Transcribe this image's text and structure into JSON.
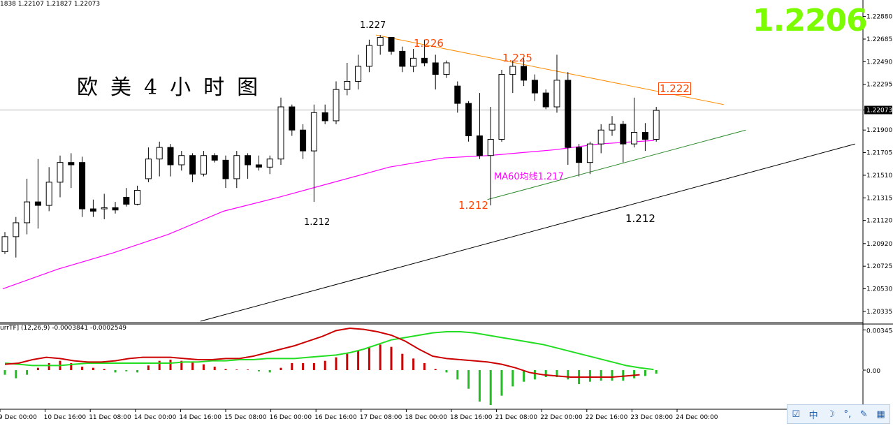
{
  "header_text": "1838 1.22107 1.21827 1.22073",
  "indicator_header": "urrTF] (12,26,9) -0.0003841 -0.0002549",
  "big_price": "1.2206",
  "title_cn": "欧美4小时图",
  "annotations": {
    "high_1227": "1.227",
    "high_1226": "1.226",
    "high_1225": "1.225",
    "level_1222": "1.222",
    "ma60_label": "MA60均线1.217",
    "low_1212_left": "1.212",
    "low_1212_mid": "1.212",
    "low_1212_right": "1.212"
  },
  "tray_icons": [
    "checkbox-icon",
    "chinese-ime-icon",
    "moon-icon",
    "punctuation-icon",
    "tools-icon",
    "grid-icon"
  ],
  "tray_labels": [
    "☑",
    "中",
    "☽",
    "°,",
    "✎",
    "▦"
  ],
  "colors": {
    "up_candle": "#ffffff",
    "down_candle": "#000000",
    "ma60": "#ff00ff",
    "resistance": "#ff8c00",
    "support": "#2e8b2e",
    "long_support": "#000000",
    "macd_main": "#cc0000",
    "macd_signal": "#22dd22",
    "hist_pos": "#cc0000",
    "hist_neg": "#22bb22",
    "big_price": "#7CFC00"
  },
  "chart_data": {
    "type": "candlestick",
    "symbol": "EURUSD H4",
    "current_price": "1.22073",
    "price_axis": {
      "ylim": [
        1.2025,
        1.2295
      ],
      "ticks": [
        "1.22880",
        "1.22685",
        "1.22490",
        "1.22295",
        "1.22073",
        "1.21900",
        "1.21705",
        "1.21510",
        "1.21315",
        "1.21120",
        "1.20920",
        "1.20725",
        "1.20530",
        "1.20335"
      ]
    },
    "time_axis": [
      "9 Dec 00:00",
      "10 Dec 16:00",
      "11 Dec 08:00",
      "14 Dec 00:00",
      "14 Dec 16:00",
      "15 Dec 08:00",
      "16 Dec 00:00",
      "16 Dec 16:00",
      "17 Dec 08:00",
      "18 Dec 00:00",
      "18 Dec 16:00",
      "21 Dec 08:00",
      "22 Dec 00:00",
      "22 Dec 16:00",
      "23 Dec 08:00",
      "24 Dec 00:00"
    ],
    "candles": [
      {
        "o": 1.2085,
        "h": 1.2102,
        "l": 1.2083,
        "c": 1.2098
      },
      {
        "o": 1.2098,
        "h": 1.2115,
        "l": 1.208,
        "c": 1.211
      },
      {
        "o": 1.211,
        "h": 1.2148,
        "l": 1.21,
        "c": 1.2128
      },
      {
        "o": 1.2128,
        "h": 1.2165,
        "l": 1.2105,
        "c": 1.2125
      },
      {
        "o": 1.2125,
        "h": 1.2158,
        "l": 1.212,
        "c": 1.2145
      },
      {
        "o": 1.2145,
        "h": 1.2168,
        "l": 1.2132,
        "c": 1.2162
      },
      {
        "o": 1.2162,
        "h": 1.217,
        "l": 1.214,
        "c": 1.216
      },
      {
        "o": 1.2162,
        "h": 1.2167,
        "l": 1.2115,
        "c": 1.2122
      },
      {
        "o": 1.2122,
        "h": 1.213,
        "l": 1.2115,
        "c": 1.212
      },
      {
        "o": 1.2122,
        "h": 1.2135,
        "l": 1.2113,
        "c": 1.2123
      },
      {
        "o": 1.2123,
        "h": 1.2128,
        "l": 1.2118,
        "c": 1.2121
      },
      {
        "o": 1.2132,
        "h": 1.214,
        "l": 1.2124,
        "c": 1.2126
      },
      {
        "o": 1.2126,
        "h": 1.2142,
        "l": 1.2125,
        "c": 1.2138
      },
      {
        "o": 1.2148,
        "h": 1.2175,
        "l": 1.2145,
        "c": 1.2165
      },
      {
        "o": 1.2165,
        "h": 1.218,
        "l": 1.215,
        "c": 1.2175
      },
      {
        "o": 1.2175,
        "h": 1.2178,
        "l": 1.215,
        "c": 1.216
      },
      {
        "o": 1.216,
        "h": 1.2172,
        "l": 1.2155,
        "c": 1.2168
      },
      {
        "o": 1.2168,
        "h": 1.217,
        "l": 1.2145,
        "c": 1.2152
      },
      {
        "o": 1.2152,
        "h": 1.2172,
        "l": 1.215,
        "c": 1.2168
      },
      {
        "o": 1.2168,
        "h": 1.217,
        "l": 1.2162,
        "c": 1.2164
      },
      {
        "o": 1.2164,
        "h": 1.2168,
        "l": 1.214,
        "c": 1.2148
      },
      {
        "o": 1.2148,
        "h": 1.2172,
        "l": 1.214,
        "c": 1.2168
      },
      {
        "o": 1.2168,
        "h": 1.217,
        "l": 1.2148,
        "c": 1.216
      },
      {
        "o": 1.216,
        "h": 1.2168,
        "l": 1.2155,
        "c": 1.2158
      },
      {
        "o": 1.2158,
        "h": 1.2168,
        "l": 1.2152,
        "c": 1.2165
      },
      {
        "o": 1.2165,
        "h": 1.2218,
        "l": 1.216,
        "c": 1.221
      },
      {
        "o": 1.221,
        "h": 1.2212,
        "l": 1.2185,
        "c": 1.219
      },
      {
        "o": 1.219,
        "h": 1.2195,
        "l": 1.2165,
        "c": 1.2172
      },
      {
        "o": 1.2172,
        "h": 1.2212,
        "l": 1.2128,
        "c": 1.2205
      },
      {
        "o": 1.2205,
        "h": 1.2212,
        "l": 1.2195,
        "c": 1.2198
      },
      {
        "o": 1.2198,
        "h": 1.2232,
        "l": 1.2195,
        "c": 1.2225
      },
      {
        "o": 1.2225,
        "h": 1.2248,
        "l": 1.222,
        "c": 1.2232
      },
      {
        "o": 1.2232,
        "h": 1.2255,
        "l": 1.2225,
        "c": 1.2245
      },
      {
        "o": 1.2245,
        "h": 1.2268,
        "l": 1.224,
        "c": 1.2263
      },
      {
        "o": 1.2263,
        "h": 1.2272,
        "l": 1.2255,
        "c": 1.227
      },
      {
        "o": 1.227,
        "h": 1.227,
        "l": 1.2255,
        "c": 1.2258
      },
      {
        "o": 1.2258,
        "h": 1.2262,
        "l": 1.224,
        "c": 1.2245
      },
      {
        "o": 1.2245,
        "h": 1.226,
        "l": 1.224,
        "c": 1.2252
      },
      {
        "o": 1.2252,
        "h": 1.2268,
        "l": 1.2245,
        "c": 1.2248
      },
      {
        "o": 1.2248,
        "h": 1.2255,
        "l": 1.2225,
        "c": 1.2238
      },
      {
        "o": 1.2238,
        "h": 1.225,
        "l": 1.2235,
        "c": 1.2248
      },
      {
        "o": 1.2228,
        "h": 1.2232,
        "l": 1.2205,
        "c": 1.2213
      },
      {
        "o": 1.2213,
        "h": 1.2215,
        "l": 1.218,
        "c": 1.2185
      },
      {
        "o": 1.2185,
        "h": 1.2222,
        "l": 1.2165,
        "c": 1.2168
      },
      {
        "o": 1.2168,
        "h": 1.221,
        "l": 1.2125,
        "c": 1.2182
      },
      {
        "o": 1.2182,
        "h": 1.2242,
        "l": 1.218,
        "c": 1.2238
      },
      {
        "o": 1.2238,
        "h": 1.225,
        "l": 1.2222,
        "c": 1.2245
      },
      {
        "o": 1.2245,
        "h": 1.2252,
        "l": 1.2228,
        "c": 1.2233
      },
      {
        "o": 1.2233,
        "h": 1.2238,
        "l": 1.2215,
        "c": 1.2222
      },
      {
        "o": 1.2222,
        "h": 1.2225,
        "l": 1.2208,
        "c": 1.221
      },
      {
        "o": 1.221,
        "h": 1.2255,
        "l": 1.2205,
        "c": 1.2233
      },
      {
        "o": 1.2233,
        "h": 1.224,
        "l": 1.216,
        "c": 1.2175
      },
      {
        "o": 1.2175,
        "h": 1.2178,
        "l": 1.215,
        "c": 1.2162
      },
      {
        "o": 1.2162,
        "h": 1.218,
        "l": 1.2152,
        "c": 1.2178
      },
      {
        "o": 1.2178,
        "h": 1.2195,
        "l": 1.217,
        "c": 1.219
      },
      {
        "o": 1.219,
        "h": 1.2202,
        "l": 1.2185,
        "c": 1.2195
      },
      {
        "o": 1.2195,
        "h": 1.2198,
        "l": 1.2162,
        "c": 1.2178
      },
      {
        "o": 1.2178,
        "h": 1.2218,
        "l": 1.2175,
        "c": 1.2188
      },
      {
        "o": 1.2188,
        "h": 1.2196,
        "l": 1.2172,
        "c": 1.2182
      },
      {
        "o": 1.2182,
        "h": 1.221,
        "l": 1.218,
        "c": 1.2207
      }
    ],
    "ma60": [
      {
        "bar": 0,
        "v": 1.2053
      },
      {
        "bar": 5,
        "v": 1.207
      },
      {
        "bar": 10,
        "v": 1.2084
      },
      {
        "bar": 15,
        "v": 1.21
      },
      {
        "bar": 20,
        "v": 1.212
      },
      {
        "bar": 25,
        "v": 1.2132
      },
      {
        "bar": 30,
        "v": 1.2145
      },
      {
        "bar": 35,
        "v": 1.2158
      },
      {
        "bar": 40,
        "v": 1.2166
      },
      {
        "bar": 44,
        "v": 1.2168
      },
      {
        "bar": 50,
        "v": 1.2173
      },
      {
        "bar": 54,
        "v": 1.2178
      },
      {
        "bar": 59,
        "v": 1.2181
      }
    ],
    "trendlines": [
      {
        "name": "resistance",
        "from": {
          "bar": 33.8,
          "v": 1.2272
        },
        "to": {
          "bar": 65.3,
          "v": 1.2212
        }
      },
      {
        "name": "support",
        "from": {
          "bar": 43.9,
          "v": 1.213
        },
        "to": {
          "bar": 67.3,
          "v": 1.219
        }
      },
      {
        "name": "long_support",
        "from": {
          "bar": 17.9,
          "v": 1.2025
        },
        "to": {
          "bar": 77.2,
          "v": 1.2178
        }
      }
    ],
    "macd": {
      "ylim": [
        -0.003,
        0.0036
      ],
      "ticks": [
        "0.003454",
        "0.00"
      ],
      "histogram": [
        -0.0004,
        -0.0007,
        -0.0004,
        0.0002,
        0.0006,
        0.0008,
        0.0006,
        0.0003,
        0.0002,
        0.0001,
        -0.0002,
        -0.0001,
        -0.0002,
        0.0004,
        0.0008,
        0.0009,
        0.0008,
        0.0007,
        0.0005,
        0.0003,
        0.0001,
        5e-05,
        5e-05,
        -0.0001,
        -0.0002,
        0.0002,
        0.0006,
        0.0006,
        0.0006,
        0.0008,
        0.0011,
        0.0014,
        0.0017,
        0.002,
        0.0022,
        0.002,
        0.0014,
        0.001,
        0.0006,
        0.0001,
        -0.0002,
        -0.0008,
        -0.0016,
        -0.0027,
        -0.003,
        -0.0022,
        -0.0014,
        -0.001,
        -0.0008,
        -0.0006,
        -0.0006,
        -0.0008,
        -0.0012,
        -0.001,
        -0.0009,
        -0.0009,
        -0.0009,
        -0.0007,
        -0.0005,
        -0.0003
      ],
      "signal": [
        0.0006,
        0.0005,
        0.0004,
        0.0004,
        0.0004,
        0.0005,
        0.0006,
        0.0006,
        0.0006,
        0.0006,
        0.0006,
        0.0006,
        0.0006,
        0.0007,
        0.0007,
        0.0008,
        0.0008,
        0.0009,
        0.0009,
        0.001,
        0.001,
        0.001,
        0.0011,
        0.0012,
        0.0013,
        0.0015,
        0.0018,
        0.0022,
        0.0026,
        0.0028,
        0.003,
        0.0032,
        0.0033,
        0.0033,
        0.0032,
        0.003,
        0.0028,
        0.0026,
        0.0024,
        0.0022,
        0.0019,
        0.0016,
        0.0013,
        0.001,
        0.0007,
        0.0004,
        0.0002,
        5e-05
      ],
      "main": [
        0.0005,
        0.0006,
        0.0009,
        0.0011,
        0.001,
        0.0008,
        0.0007,
        0.0007,
        0.0008,
        0.001,
        0.0011,
        0.0011,
        0.0011,
        0.001,
        0.0009,
        0.0009,
        0.001,
        0.001,
        0.0012,
        0.0015,
        0.0018,
        0.0021,
        0.0025,
        0.0029,
        0.0034,
        0.0036,
        0.0035,
        0.0033,
        0.003,
        0.0025,
        0.0018,
        0.0012,
        0.001,
        0.0009,
        0.0008,
        0.0007,
        0.0005,
        0.0002,
        -0.0002,
        -0.0004,
        -0.0005,
        -0.0006,
        -0.0006,
        -0.0006,
        -0.0006,
        -0.0005,
        -0.0004
      ]
    }
  }
}
